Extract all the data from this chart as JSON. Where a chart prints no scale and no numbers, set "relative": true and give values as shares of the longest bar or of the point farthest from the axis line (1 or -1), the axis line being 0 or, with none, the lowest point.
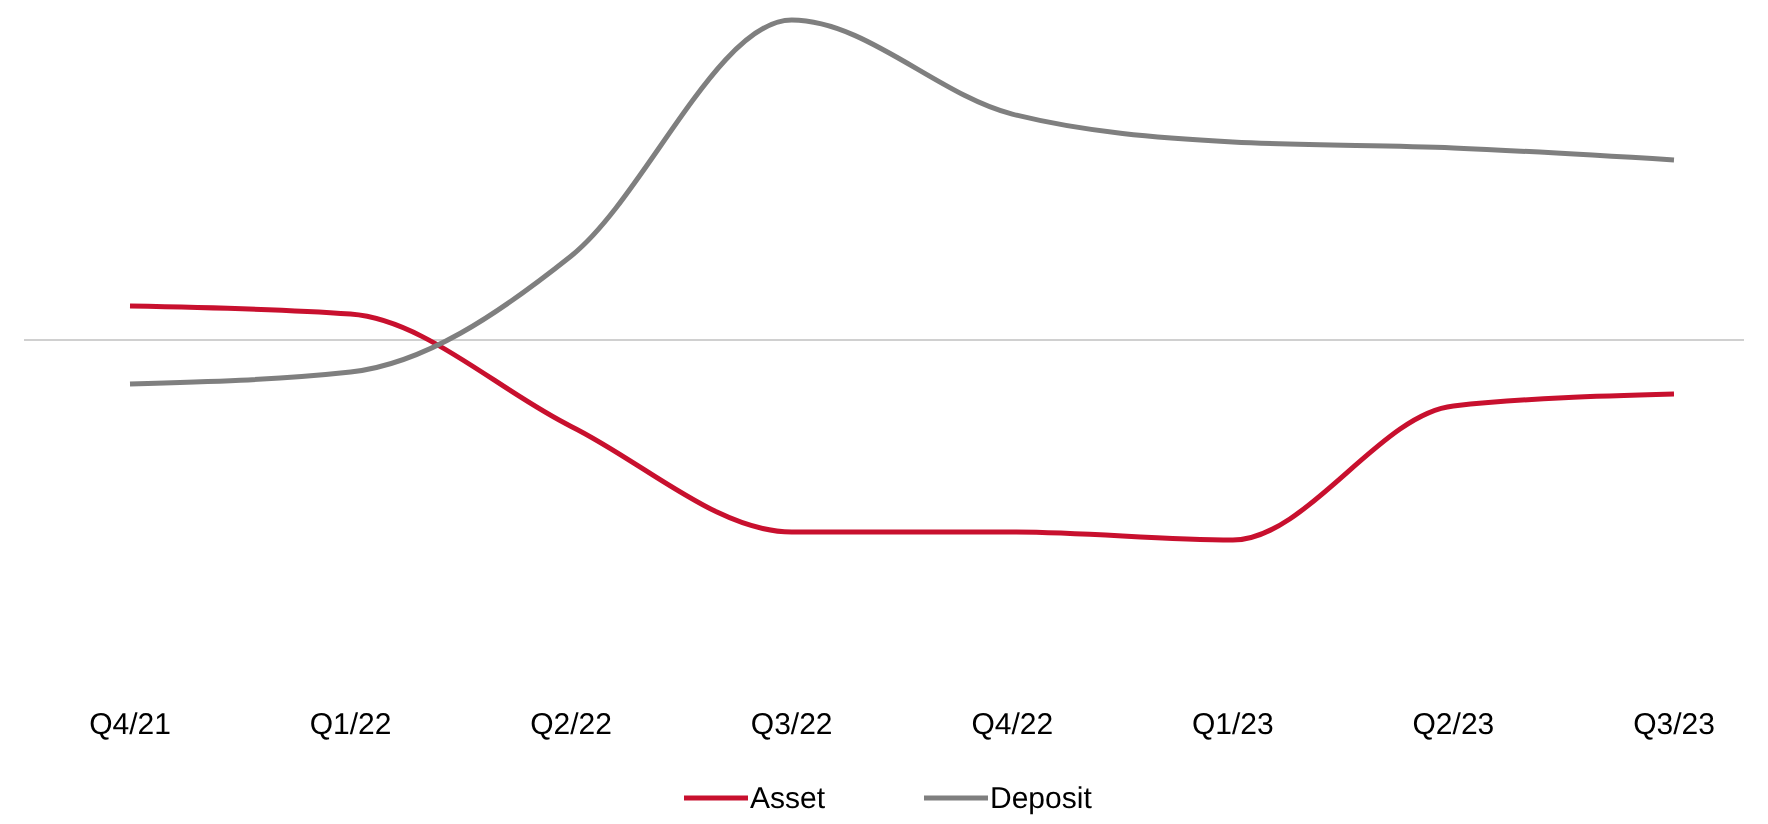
{
  "chart_data": {
    "type": "line",
    "relative": true,
    "categories": [
      "Q4/21",
      "Q1/22",
      "Q2/22",
      "Q3/22",
      "Q4/22",
      "Q1/23",
      "Q2/23",
      "Q3/23"
    ],
    "series": [
      {
        "name": "Asset",
        "color": "#c8102e",
        "values": [
          0.106,
          0.081,
          -0.27,
          -0.6,
          -0.6,
          -0.625,
          -0.206,
          -0.169
        ]
      },
      {
        "name": "Deposit",
        "color": "#7f7f7f",
        "values": [
          -0.1375,
          -0.1,
          0.2625,
          1,
          0.706,
          0.619,
          0.6,
          0.5625
        ]
      }
    ],
    "legend": "bottom",
    "marker": "none",
    "line_style": "solid",
    "grid": false
  }
}
